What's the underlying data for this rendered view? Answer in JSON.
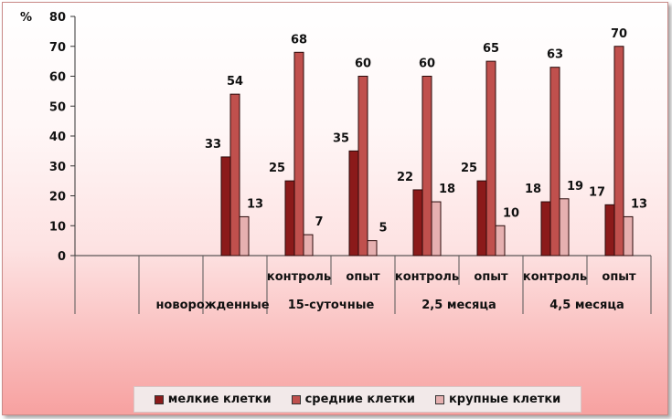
{
  "colors": {
    "series": [
      "#8b1a1a",
      "#c0504d",
      "#e6b0b0"
    ],
    "stroke": "#2a0a0a"
  },
  "chart_data": {
    "type": "bar",
    "ylabel": "%",
    "ylim": [
      0,
      80
    ],
    "yticks": [
      0,
      10,
      20,
      30,
      40,
      50,
      60,
      70,
      80
    ],
    "grid": false,
    "legend_position": "bottom",
    "groups": [
      "новорожденные",
      "15-суточные",
      "2,5 месяца",
      "4,5 месяца"
    ],
    "categories": [
      "",
      "",
      "",
      "контроль",
      "опыт",
      "контроль",
      "опыт",
      "контроль",
      "опыт"
    ],
    "series": [
      {
        "name": "мелкие клетки",
        "values": [
          null,
          null,
          33,
          25,
          35,
          22,
          25,
          18,
          17
        ]
      },
      {
        "name": "средние клетки",
        "values": [
          null,
          null,
          54,
          68,
          60,
          60,
          65,
          63,
          70
        ]
      },
      {
        "name": "крупные клетки",
        "values": [
          null,
          null,
          13,
          7,
          5,
          18,
          10,
          19,
          13
        ]
      }
    ]
  }
}
